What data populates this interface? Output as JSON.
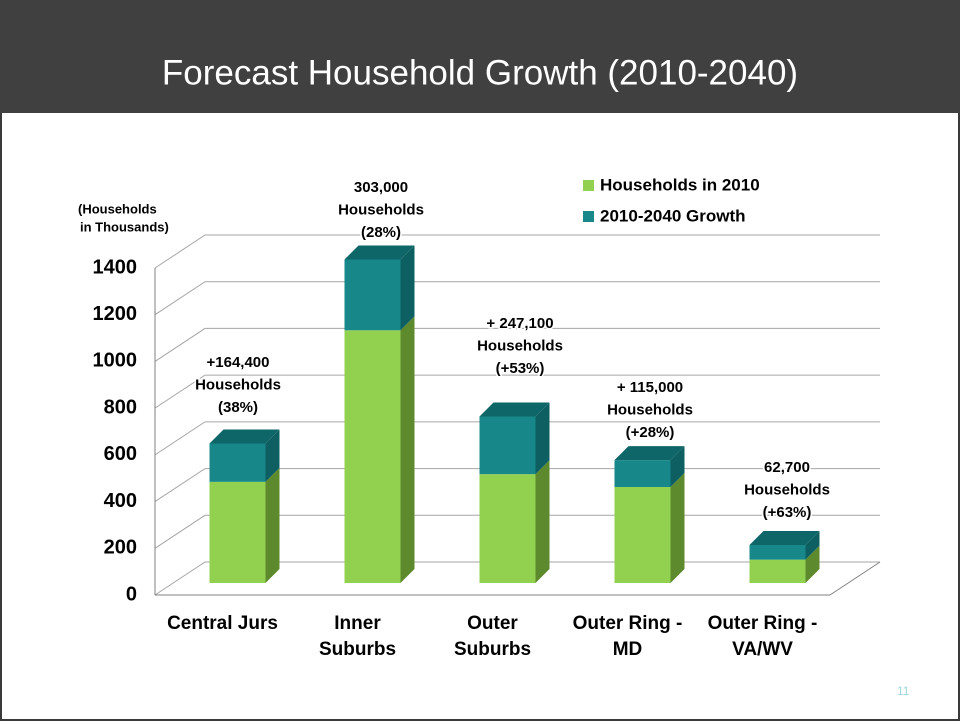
{
  "chart_data": {
    "type": "stacked-bar-3d",
    "title": "Forecast Household Growth (2010-2040)",
    "y_label": [
      "(Households",
      "in Thousands)"
    ],
    "categories": [
      [
        "Central Jurs"
      ],
      [
        "Inner",
        "Suburbs"
      ],
      [
        "Outer",
        "Suburbs"
      ],
      [
        "Outer Ring -",
        "MD"
      ],
      [
        "Outer Ring -",
        "VA/WV"
      ]
    ],
    "series": [
      {
        "name": "Households in 2010",
        "color": "#92d050",
        "values": [
          433,
          1082,
          466,
          411,
          100
        ]
      },
      {
        "name": "2010-2040 Growth",
        "color": "#17878a",
        "values": [
          164.4,
          303,
          247.1,
          115,
          62.7
        ]
      }
    ],
    "annotations": [
      [
        "+164,400",
        "Households",
        "(38%)"
      ],
      [
        "303,000",
        "Households",
        "(28%)"
      ],
      [
        "+ 247,100",
        "Households",
        "(+53%)"
      ],
      [
        "+ 115,000",
        "Households",
        "(+28%)"
      ],
      [
        "62,700",
        "Households",
        "(+63%)"
      ]
    ],
    "ylim": [
      0,
      1400
    ],
    "yticks": [
      0,
      200,
      400,
      600,
      800,
      1000,
      1200,
      1400
    ],
    "grid": true,
    "page_number": "11"
  }
}
